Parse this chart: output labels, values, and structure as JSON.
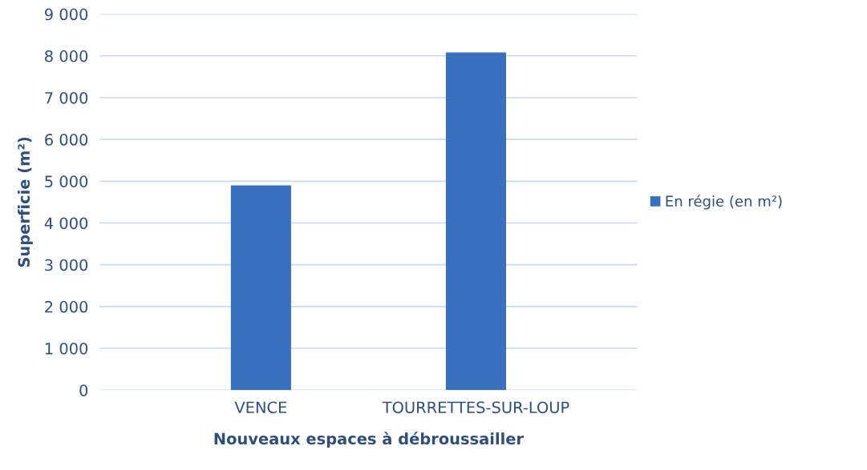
{
  "chart_data": {
    "type": "bar",
    "xlabel": "Nouveaux espaces à débroussailler",
    "ylabel": "Superficie (m²)",
    "categories": [
      "VENCE",
      "TOURRETTES-SUR-LOUP"
    ],
    "series": [
      {
        "name": "En régie (en m²)",
        "color": "#3870bd",
        "values": [
          4900,
          8080
        ]
      }
    ],
    "ylim": [
      0,
      9000
    ],
    "yticks": [
      {
        "value": 0,
        "label": "0"
      },
      {
        "value": 1000,
        "label": "1 000"
      },
      {
        "value": 2000,
        "label": "2 000"
      },
      {
        "value": 3000,
        "label": "3 000"
      },
      {
        "value": 4000,
        "label": "4 000"
      },
      {
        "value": 5000,
        "label": "5 000"
      },
      {
        "value": 6000,
        "label": "6 000"
      },
      {
        "value": 7000,
        "label": "7 000"
      },
      {
        "value": 8000,
        "label": "8 000"
      },
      {
        "value": 9000,
        "label": "9 000"
      }
    ],
    "grid": "y",
    "legend": "right"
  }
}
